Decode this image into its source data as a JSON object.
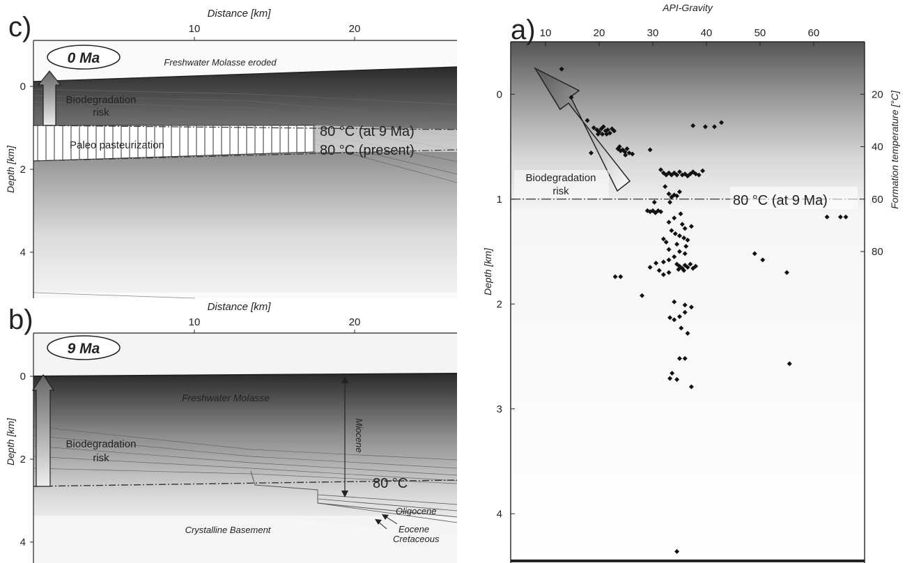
{
  "panel_c": {
    "letter": "c)",
    "age_label": "0 Ma",
    "xlabel": "Distance [km]",
    "ylabel": "Depth [km]",
    "x_ticks": [
      "10",
      "20"
    ],
    "y_ticks": [
      "0",
      "2",
      "4"
    ],
    "eroded_label": "Freshwater Molasse eroded",
    "risk_label_1": "Biodegradation",
    "risk_label_2": "risk",
    "pasteurization_label": "Paleo pasteurization",
    "iso_9ma_label": "80 °C (at 9 Ma)",
    "iso_present_label": "80 °C (present)"
  },
  "panel_b": {
    "letter": "b)",
    "age_label": "9 Ma",
    "xlabel": "Distance [km]",
    "ylabel": "Depth [km]",
    "x_ticks": [
      "10",
      "20"
    ],
    "y_ticks": [
      "0",
      "2",
      "4"
    ],
    "molasse_label": "Freshwater Molasse",
    "miocene_label": "Miocene",
    "risk_label_1": "Biodegradation",
    "risk_label_2": "risk",
    "iso_label": "80 °C",
    "oligocene_label": "Oligocene",
    "eocene_label": "Eocene",
    "cretaceous_label": "Cretaceous",
    "basement_label": "Crystalline Basement"
  },
  "chart_data": {
    "type": "scatter",
    "letter": "a)",
    "xlabel": "API-Gravity",
    "ylabel": "Depth [km]",
    "y2label": "Formation temperature [°C]",
    "x_ticks": [
      "10",
      "20",
      "30",
      "40",
      "50",
      "60"
    ],
    "y_ticks": [
      "0",
      "1",
      "2",
      "3",
      "4"
    ],
    "y2_ticks": [
      "20",
      "40",
      "60",
      "80"
    ],
    "xlim": [
      3.5,
      69.5
    ],
    "ylim": [
      -0.5,
      4.45
    ],
    "y2_depth_positions": [
      0,
      0.5,
      1.0,
      1.5
    ],
    "risk_label_1": "Biodegradation",
    "risk_label_2": "risk",
    "iso_label": "80 °C (at 9 Ma)",
    "iso_depth": 1.0,
    "points": [
      [
        13.0,
        -0.24
      ],
      [
        14.8,
        0.03
      ],
      [
        17.8,
        0.25
      ],
      [
        19.0,
        0.32
      ],
      [
        19.6,
        0.34
      ],
      [
        20.0,
        0.36
      ],
      [
        20.4,
        0.33
      ],
      [
        20.8,
        0.31
      ],
      [
        21.2,
        0.35
      ],
      [
        21.6,
        0.34
      ],
      [
        22.0,
        0.37
      ],
      [
        22.4,
        0.33
      ],
      [
        22.8,
        0.35
      ],
      [
        19.8,
        0.38
      ],
      [
        20.6,
        0.38
      ],
      [
        21.4,
        0.38
      ],
      [
        18.5,
        0.56
      ],
      [
        23.5,
        0.52
      ],
      [
        24.0,
        0.54
      ],
      [
        24.4,
        0.53
      ],
      [
        24.8,
        0.55
      ],
      [
        25.2,
        0.52
      ],
      [
        25.6,
        0.56
      ],
      [
        26.2,
        0.57
      ],
      [
        23.8,
        0.5
      ],
      [
        24.9,
        0.58
      ],
      [
        29.5,
        0.53
      ],
      [
        37.5,
        0.3
      ],
      [
        39.8,
        0.31
      ],
      [
        41.5,
        0.31
      ],
      [
        42.8,
        0.27
      ],
      [
        31.5,
        0.72
      ],
      [
        32.0,
        0.75
      ],
      [
        32.5,
        0.77
      ],
      [
        33.0,
        0.75
      ],
      [
        33.5,
        0.77
      ],
      [
        34.0,
        0.75
      ],
      [
        34.5,
        0.77
      ],
      [
        35.0,
        0.74
      ],
      [
        35.5,
        0.77
      ],
      [
        36.0,
        0.76
      ],
      [
        36.5,
        0.78
      ],
      [
        37.0,
        0.76
      ],
      [
        37.5,
        0.74
      ],
      [
        38.0,
        0.76
      ],
      [
        38.6,
        0.77
      ],
      [
        39.3,
        0.73
      ],
      [
        32.3,
        0.88
      ],
      [
        33.0,
        0.95
      ],
      [
        33.5,
        0.98
      ],
      [
        34.0,
        0.96
      ],
      [
        34.5,
        0.97
      ],
      [
        35.0,
        0.93
      ],
      [
        33.2,
        1.03
      ],
      [
        30.3,
        1.03
      ],
      [
        29.0,
        1.11
      ],
      [
        29.5,
        1.12
      ],
      [
        30.0,
        1.11
      ],
      [
        30.5,
        1.13
      ],
      [
        31.0,
        1.11
      ],
      [
        31.5,
        1.12
      ],
      [
        35.2,
        1.14
      ],
      [
        34.0,
        1.18
      ],
      [
        33.0,
        1.22
      ],
      [
        35.5,
        1.24
      ],
      [
        36.0,
        1.28
      ],
      [
        37.2,
        1.26
      ],
      [
        33.5,
        1.3
      ],
      [
        34.2,
        1.33
      ],
      [
        35.0,
        1.35
      ],
      [
        35.8,
        1.37
      ],
      [
        36.5,
        1.39
      ],
      [
        32.0,
        1.38
      ],
      [
        32.5,
        1.41
      ],
      [
        34.5,
        1.43
      ],
      [
        36.2,
        1.45
      ],
      [
        33.0,
        1.48
      ],
      [
        35.0,
        1.5
      ],
      [
        36.0,
        1.52
      ],
      [
        34.0,
        1.55
      ],
      [
        33.0,
        1.58
      ],
      [
        32.0,
        1.6
      ],
      [
        30.6,
        1.61
      ],
      [
        34.5,
        1.62
      ],
      [
        35.0,
        1.64
      ],
      [
        35.5,
        1.66
      ],
      [
        36.0,
        1.63
      ],
      [
        36.5,
        1.65
      ],
      [
        37.0,
        1.62
      ],
      [
        37.5,
        1.66
      ],
      [
        38.0,
        1.64
      ],
      [
        34.8,
        1.67
      ],
      [
        35.8,
        1.68
      ],
      [
        33.0,
        1.7
      ],
      [
        32.0,
        1.72
      ],
      [
        31.2,
        1.68
      ],
      [
        29.5,
        1.65
      ],
      [
        23.0,
        1.74
      ],
      [
        24.0,
        1.74
      ],
      [
        28.0,
        1.92
      ],
      [
        34.0,
        1.98
      ],
      [
        36.0,
        2.01
      ],
      [
        37.2,
        2.03
      ],
      [
        33.2,
        2.13
      ],
      [
        34.0,
        2.15
      ],
      [
        35.0,
        2.12
      ],
      [
        36.0,
        2.08
      ],
      [
        35.3,
        2.23
      ],
      [
        36.5,
        2.28
      ],
      [
        35.0,
        2.52
      ],
      [
        36.0,
        2.52
      ],
      [
        33.6,
        2.66
      ],
      [
        33.2,
        2.71
      ],
      [
        34.5,
        2.72
      ],
      [
        37.2,
        2.79
      ],
      [
        49.0,
        1.52
      ],
      [
        50.5,
        1.58
      ],
      [
        55.0,
        1.7
      ],
      [
        55.5,
        2.57
      ],
      [
        62.5,
        1.17
      ],
      [
        65.0,
        1.17
      ],
      [
        66.0,
        1.17
      ],
      [
        34.5,
        4.36
      ]
    ]
  }
}
